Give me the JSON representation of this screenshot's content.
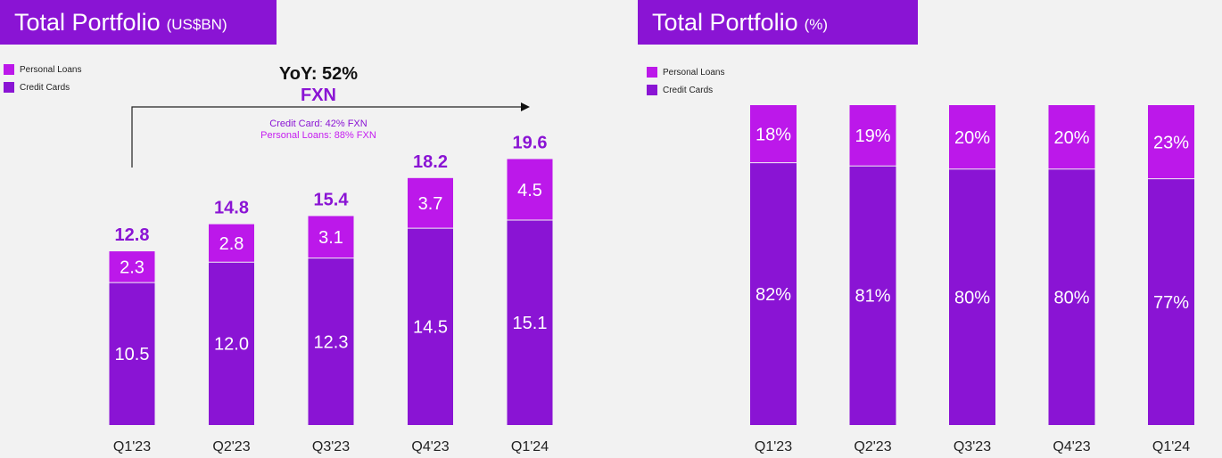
{
  "colors": {
    "personal_loans": "#bc18ea",
    "credit_cards": "#8a14d4",
    "title_bg": "#8a14d4",
    "accent_text": "#8a14d4",
    "personal_note": "#c51ef0"
  },
  "left": {
    "title": "Total Portfolio",
    "title_unit": "(US$BN)",
    "legend": [
      "Personal Loans",
      "Credit Cards"
    ],
    "annotation": {
      "yoy": "YoY: 52%",
      "fxn": "FXN",
      "credit_note": "Credit Card: 42% FXN",
      "personal_note": "Personal Loans: 88% FXN"
    }
  },
  "right": {
    "title": "Total Portfolio",
    "title_unit": "(%)",
    "legend": [
      "Personal Loans",
      "Credit Cards"
    ]
  },
  "chart_data": [
    {
      "type": "bar",
      "stacked": true,
      "title": "Total Portfolio (US$BN)",
      "categories": [
        "Q1'23",
        "Q2'23",
        "Q3'23",
        "Q4'23",
        "Q1'24"
      ],
      "series": [
        {
          "name": "Credit Cards",
          "values": [
            10.5,
            12.0,
            12.3,
            14.5,
            15.1
          ],
          "labels": [
            "10.5",
            "12.0",
            "12.3",
            "14.5",
            "15.1"
          ]
        },
        {
          "name": "Personal Loans",
          "values": [
            2.3,
            2.8,
            3.1,
            3.7,
            4.5
          ],
          "labels": [
            "2.3",
            "2.8",
            "3.1",
            "3.7",
            "4.5"
          ]
        }
      ],
      "totals": [
        "12.8",
        "14.8",
        "15.4",
        "18.2",
        "19.6"
      ],
      "legend_position": "top-left",
      "grid": false
    },
    {
      "type": "bar",
      "stacked": true,
      "percent": true,
      "title": "Total Portfolio (%)",
      "categories": [
        "Q1'23",
        "Q2'23",
        "Q3'23",
        "Q4'23",
        "Q1'24"
      ],
      "series": [
        {
          "name": "Credit Cards",
          "values": [
            82,
            81,
            80,
            80,
            77
          ],
          "labels": [
            "82%",
            "81%",
            "80%",
            "80%",
            "77%"
          ]
        },
        {
          "name": "Personal Loans",
          "values": [
            18,
            19,
            20,
            20,
            23
          ],
          "labels": [
            "18%",
            "19%",
            "20%",
            "20%",
            "23%"
          ]
        }
      ],
      "legend_position": "top-left",
      "grid": false
    }
  ]
}
